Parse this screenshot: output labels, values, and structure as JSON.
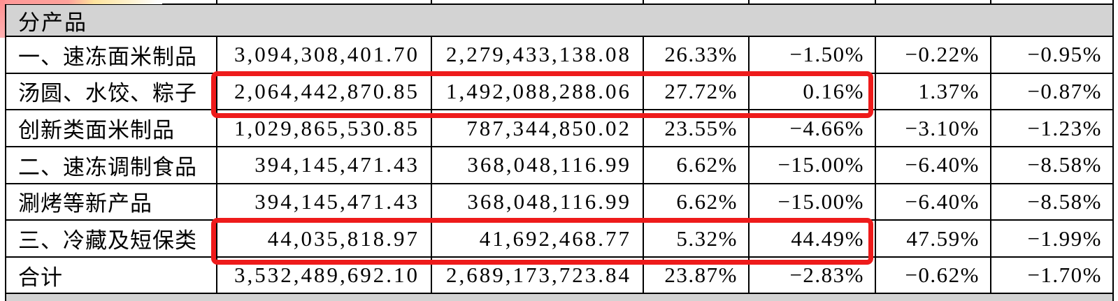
{
  "table": {
    "section_header": "分产品",
    "rows": [
      {
        "name": "一、速冻面米制品",
        "revenue": "3,094,308,401.70",
        "cost": "2,279,433,138.08",
        "gross_margin": "26.33%",
        "revenue_yoy": "−1.50%",
        "cost_yoy": "−0.22%",
        "margin_yoy": "−0.95%",
        "highlighted": false
      },
      {
        "name": "汤圆、水饺、粽子",
        "revenue": "2,064,442,870.85",
        "cost": "1,492,088,288.06",
        "gross_margin": "27.72%",
        "revenue_yoy": "0.16%",
        "cost_yoy": "1.37%",
        "margin_yoy": "−0.87%",
        "highlighted": true
      },
      {
        "name": "创新类面米制品",
        "revenue": "1,029,865,530.85",
        "cost": "787,344,850.02",
        "gross_margin": "23.55%",
        "revenue_yoy": "−4.66%",
        "cost_yoy": "−3.10%",
        "margin_yoy": "−1.23%",
        "highlighted": false
      },
      {
        "name": "二、速冻调制食品",
        "revenue": "394,145,471.43",
        "cost": "368,048,116.99",
        "gross_margin": "6.62%",
        "revenue_yoy": "−15.00%",
        "cost_yoy": "−6.40%",
        "margin_yoy": "−8.58%",
        "highlighted": false
      },
      {
        "name": "涮烤等新产品",
        "revenue": "394,145,471.43",
        "cost": "368,048,116.99",
        "gross_margin": "6.62%",
        "revenue_yoy": "−15.00%",
        "cost_yoy": "−6.40%",
        "margin_yoy": "−8.58%",
        "highlighted": false
      },
      {
        "name": "三、冷藏及短保类",
        "revenue": "44,035,818.97",
        "cost": "41,692,468.77",
        "gross_margin": "5.32%",
        "revenue_yoy": "44.49%",
        "cost_yoy": "47.59%",
        "margin_yoy": "−1.99%",
        "highlighted": true
      },
      {
        "name": "合计",
        "revenue": "3,532,489,692.10",
        "cost": "2,689,173,723.84",
        "gross_margin": "23.87%",
        "revenue_yoy": "−2.83%",
        "cost_yoy": "−0.62%",
        "margin_yoy": "−1.70%",
        "highlighted": false
      }
    ]
  },
  "annotation_colors": {
    "red_box": "#ee1b1b",
    "header_bg": "#d3d3d3",
    "highlighter_pink": "#ff9d9d",
    "highlighter_yellow": "#ffe49d"
  }
}
